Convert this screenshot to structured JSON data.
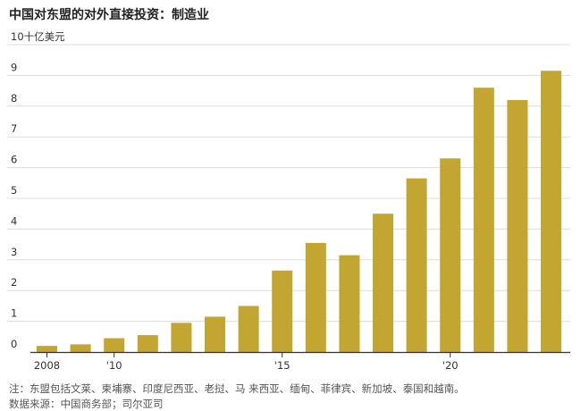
{
  "title": "中国对东盟的对外直接投资：制造业",
  "note": "注：东盟包括文莱、柬埔寨、印度尼西亚、老挝、马 来西亚、缅甸、菲律宾、新加坡、泰国和越南。",
  "source": "数据来源：中国商务部；司尔亚司",
  "colors": {
    "bar": "#c3a531",
    "grid": "#dcdcdc",
    "axis": "#333333",
    "text": "#555555"
  },
  "chart_data": {
    "type": "bar",
    "title": "中国对东盟的对外直接投资：制造业",
    "ylabel": "10十亿美元",
    "xlabel": "",
    "categories": [
      "2008",
      "2009",
      "2010",
      "2011",
      "2012",
      "2013",
      "2014",
      "2015",
      "2016",
      "2017",
      "2018",
      "2019",
      "2020",
      "2021",
      "2022",
      "2023"
    ],
    "x_tick_labels": [
      {
        "category": "2008",
        "label": "2008"
      },
      {
        "category": "2010",
        "label": "'10"
      },
      {
        "category": "2015",
        "label": "'15"
      },
      {
        "category": "2020",
        "label": "'20"
      }
    ],
    "values": [
      0.2,
      0.25,
      0.45,
      0.55,
      0.95,
      1.15,
      1.5,
      2.65,
      3.55,
      3.15,
      4.5,
      5.65,
      6.3,
      8.6,
      8.2,
      9.15
    ],
    "ylim": [
      0,
      10
    ],
    "yticks": [
      0,
      1,
      2,
      3,
      4,
      5,
      6,
      7,
      8,
      9,
      10
    ],
    "grid": true,
    "legend": "none"
  }
}
